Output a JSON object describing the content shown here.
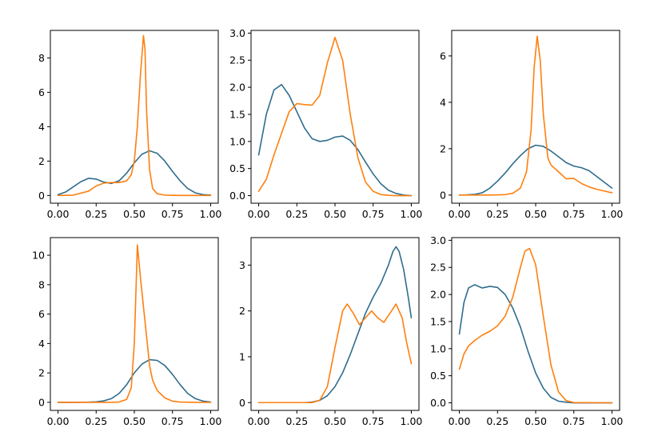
{
  "chart_data": [
    {
      "type": "line",
      "xlim": [
        0,
        1
      ],
      "ylim": [
        -0.45,
        9.6
      ],
      "xticks": [
        "0.00",
        "0.25",
        "0.50",
        "0.75",
        "1.00"
      ],
      "yticks": [
        "0",
        "2",
        "4",
        "6",
        "8"
      ],
      "grid": false,
      "series": [
        {
          "color": "#2f6d8e",
          "x": [
            0,
            0.05,
            0.1,
            0.15,
            0.2,
            0.25,
            0.3,
            0.35,
            0.4,
            0.45,
            0.5,
            0.55,
            0.6,
            0.65,
            0.7,
            0.75,
            0.8,
            0.85,
            0.9,
            0.95,
            1
          ],
          "y": [
            0.05,
            0.2,
            0.5,
            0.8,
            1.0,
            0.95,
            0.78,
            0.7,
            0.85,
            1.3,
            1.9,
            2.4,
            2.6,
            2.45,
            2.0,
            1.4,
            0.85,
            0.4,
            0.15,
            0.05,
            0.02
          ]
        },
        {
          "color": "#ff7f0e",
          "x": [
            0,
            0.1,
            0.2,
            0.25,
            0.3,
            0.35,
            0.4,
            0.45,
            0.48,
            0.5,
            0.52,
            0.54,
            0.56,
            0.57,
            0.58,
            0.6,
            0.62,
            0.65,
            0.7,
            0.8,
            1
          ],
          "y": [
            0,
            0.02,
            0.25,
            0.55,
            0.72,
            0.75,
            0.75,
            0.85,
            1.2,
            2.0,
            4.0,
            7.0,
            9.3,
            8.5,
            5.0,
            1.5,
            0.4,
            0.1,
            0.02,
            0,
            0
          ]
        }
      ]
    },
    {
      "type": "line",
      "xlim": [
        0,
        1
      ],
      "ylim": [
        -0.14,
        3.05
      ],
      "xticks": [
        "0.00",
        "0.25",
        "0.50",
        "0.75",
        "1.00"
      ],
      "yticks": [
        "0.0",
        "0.5",
        "1.0",
        "1.5",
        "2.0",
        "2.5",
        "3.0"
      ],
      "grid": false,
      "series": [
        {
          "color": "#2f6d8e",
          "x": [
            0,
            0.05,
            0.1,
            0.15,
            0.2,
            0.25,
            0.3,
            0.35,
            0.4,
            0.45,
            0.5,
            0.55,
            0.6,
            0.65,
            0.7,
            0.75,
            0.8,
            0.85,
            0.9,
            0.95,
            1
          ],
          "y": [
            0.75,
            1.5,
            1.95,
            2.05,
            1.85,
            1.55,
            1.25,
            1.05,
            1.0,
            1.02,
            1.08,
            1.1,
            1.02,
            0.85,
            0.62,
            0.4,
            0.22,
            0.1,
            0.04,
            0.01,
            0
          ]
        },
        {
          "color": "#ff7f0e",
          "x": [
            0,
            0.05,
            0.1,
            0.15,
            0.2,
            0.25,
            0.3,
            0.35,
            0.4,
            0.45,
            0.5,
            0.55,
            0.6,
            0.65,
            0.7,
            0.75,
            0.8,
            0.85,
            0.9,
            1
          ],
          "y": [
            0.08,
            0.3,
            0.75,
            1.15,
            1.55,
            1.7,
            1.68,
            1.67,
            1.85,
            2.45,
            2.92,
            2.5,
            1.5,
            0.7,
            0.25,
            0.08,
            0.02,
            0.005,
            0,
            0
          ]
        }
      ]
    },
    {
      "type": "line",
      "xlim": [
        0,
        1
      ],
      "ylim": [
        -0.35,
        7.1
      ],
      "xticks": [
        "0.00",
        "0.25",
        "0.50",
        "0.75",
        "1.00"
      ],
      "yticks": [
        "0",
        "2",
        "4",
        "6"
      ],
      "grid": false,
      "series": [
        {
          "color": "#2f6d8e",
          "x": [
            0,
            0.05,
            0.1,
            0.15,
            0.2,
            0.25,
            0.3,
            0.35,
            0.4,
            0.45,
            0.5,
            0.55,
            0.6,
            0.65,
            0.7,
            0.75,
            0.8,
            0.85,
            0.9,
            0.95,
            1
          ],
          "y": [
            0,
            0.01,
            0.03,
            0.1,
            0.3,
            0.6,
            0.95,
            1.35,
            1.7,
            2.0,
            2.15,
            2.1,
            1.9,
            1.65,
            1.4,
            1.25,
            1.18,
            1.05,
            0.8,
            0.55,
            0.3
          ]
        },
        {
          "color": "#ff7f0e",
          "x": [
            0,
            0.2,
            0.3,
            0.35,
            0.4,
            0.44,
            0.47,
            0.49,
            0.51,
            0.53,
            0.55,
            0.58,
            0.6,
            0.65,
            0.7,
            0.75,
            0.8,
            0.85,
            0.9,
            1
          ],
          "y": [
            0,
            0,
            0.02,
            0.08,
            0.3,
            1.0,
            2.8,
            5.5,
            6.85,
            5.8,
            3.5,
            1.6,
            1.3,
            1.0,
            0.7,
            0.72,
            0.5,
            0.35,
            0.25,
            0.1
          ]
        }
      ]
    },
    {
      "type": "line",
      "xlim": [
        0,
        1
      ],
      "ylim": [
        -0.55,
        11.2
      ],
      "xticks": [
        "0.00",
        "0.25",
        "0.50",
        "0.75",
        "1.00"
      ],
      "yticks": [
        "0",
        "2",
        "4",
        "6",
        "8",
        "10"
      ],
      "grid": false,
      "series": [
        {
          "color": "#2f6d8e",
          "x": [
            0,
            0.1,
            0.2,
            0.25,
            0.3,
            0.35,
            0.4,
            0.45,
            0.5,
            0.55,
            0.6,
            0.65,
            0.7,
            0.75,
            0.8,
            0.85,
            0.9,
            0.95,
            1
          ],
          "y": [
            0,
            0,
            0.01,
            0.03,
            0.1,
            0.25,
            0.6,
            1.2,
            2.0,
            2.6,
            2.9,
            2.85,
            2.5,
            1.9,
            1.2,
            0.6,
            0.25,
            0.08,
            0.02
          ]
        },
        {
          "color": "#ff7f0e",
          "x": [
            0,
            0.2,
            0.35,
            0.4,
            0.45,
            0.48,
            0.5,
            0.52,
            0.54,
            0.56,
            0.58,
            0.6,
            0.62,
            0.65,
            0.7,
            0.75,
            0.8,
            0.9,
            1
          ],
          "y": [
            0,
            0,
            0,
            0.02,
            0.2,
            1.0,
            4.0,
            10.7,
            8.5,
            6.5,
            4.5,
            2.5,
            1.5,
            0.8,
            0.3,
            0.08,
            0.02,
            0,
            0
          ]
        }
      ]
    },
    {
      "type": "line",
      "xlim": [
        0,
        1
      ],
      "ylim": [
        -0.17,
        3.6
      ],
      "xticks": [
        "0.00",
        "0.25",
        "0.50",
        "0.75",
        "1.00"
      ],
      "yticks": [
        "0",
        "1",
        "2",
        "3"
      ],
      "grid": false,
      "series": [
        {
          "color": "#2f6d8e",
          "x": [
            0,
            0.2,
            0.3,
            0.35,
            0.4,
            0.45,
            0.5,
            0.55,
            0.6,
            0.65,
            0.7,
            0.75,
            0.8,
            0.85,
            0.88,
            0.9,
            0.92,
            0.95,
            0.98,
            1
          ],
          "y": [
            0,
            0,
            0,
            0.01,
            0.05,
            0.15,
            0.35,
            0.65,
            1.05,
            1.5,
            1.95,
            2.3,
            2.6,
            3.0,
            3.3,
            3.4,
            3.3,
            2.9,
            2.3,
            1.85
          ]
        },
        {
          "color": "#ff7f0e",
          "x": [
            0,
            0.3,
            0.35,
            0.4,
            0.45,
            0.5,
            0.55,
            0.58,
            0.62,
            0.66,
            0.7,
            0.74,
            0.78,
            0.82,
            0.86,
            0.9,
            0.94,
            0.97,
            1
          ],
          "y": [
            0,
            0,
            0,
            0.05,
            0.35,
            1.2,
            2.0,
            2.15,
            1.95,
            1.7,
            1.85,
            2.0,
            1.85,
            1.75,
            1.95,
            2.15,
            1.85,
            1.3,
            0.85
          ]
        }
      ]
    },
    {
      "type": "line",
      "xlim": [
        0,
        1
      ],
      "ylim": [
        -0.14,
        3.05
      ],
      "xticks": [
        "0.00",
        "0.25",
        "0.50",
        "0.75",
        "1.00"
      ],
      "yticks": [
        "0.0",
        "0.5",
        "1.0",
        "1.5",
        "2.0",
        "2.5",
        "3.0"
      ],
      "grid": false,
      "series": [
        {
          "color": "#2f6d8e",
          "x": [
            0,
            0.03,
            0.06,
            0.1,
            0.15,
            0.2,
            0.25,
            0.3,
            0.35,
            0.4,
            0.45,
            0.5,
            0.55,
            0.6,
            0.65,
            0.7,
            0.75,
            0.8,
            1
          ],
          "y": [
            1.27,
            1.85,
            2.12,
            2.18,
            2.12,
            2.15,
            2.13,
            2.0,
            1.75,
            1.4,
            0.95,
            0.55,
            0.27,
            0.1,
            0.03,
            0.01,
            0,
            0,
            0
          ]
        },
        {
          "color": "#ff7f0e",
          "x": [
            0,
            0.03,
            0.06,
            0.1,
            0.15,
            0.2,
            0.25,
            0.3,
            0.35,
            0.4,
            0.43,
            0.46,
            0.5,
            0.55,
            0.6,
            0.65,
            0.7,
            0.75,
            1
          ],
          "y": [
            0.62,
            0.9,
            1.05,
            1.15,
            1.25,
            1.32,
            1.42,
            1.6,
            1.95,
            2.5,
            2.8,
            2.85,
            2.55,
            1.6,
            0.7,
            0.2,
            0.04,
            0.005,
            0
          ]
        }
      ]
    }
  ]
}
